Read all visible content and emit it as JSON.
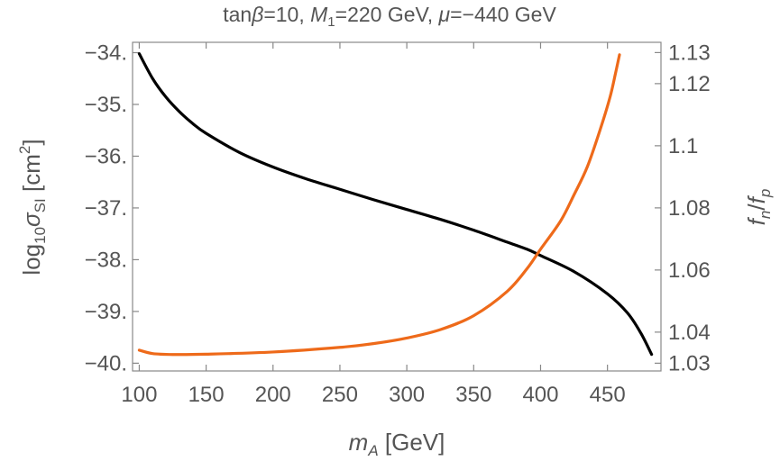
{
  "chart_data": {
    "type": "line",
    "title": "tanβ=10, M₁=220 GeV, μ=−440 GeV",
    "title_parts": {
      "t1": "tan",
      "t2": "β",
      "t3": "=10, ",
      "t4": "M",
      "t5": "1",
      "t6": "=220 GeV, ",
      "t7": "μ",
      "t8": "=−440 GeV"
    },
    "xlabel": "m_A [GeV]",
    "xlabel_parts": {
      "m": "m",
      "sub": "A",
      "rest": " [GeV]"
    },
    "ylabel_left": "log10 σSI [cm2]",
    "ylabel_left_parts": {
      "log": "log",
      "log_sub": "10",
      "sigma": "σ",
      "sigma_sub": "SI",
      "bracket": " [cm",
      "sup": "2",
      "close": "]"
    },
    "ylabel_right": "f_n/f_p",
    "ylabel_right_parts": {
      "f1": "f",
      "s1": "n",
      "slash": "/",
      "f2": "f",
      "s2": "p"
    },
    "xlim": [
      95,
      490
    ],
    "ylim_left": [
      -40.15,
      -33.8
    ],
    "ylim_right": [
      1.0275,
      1.1333
    ],
    "x_ticks": [
      {
        "value": 100,
        "label": "100"
      },
      {
        "value": 150,
        "label": "150"
      },
      {
        "value": 200,
        "label": "200"
      },
      {
        "value": 250,
        "label": "250"
      },
      {
        "value": 300,
        "label": "300"
      },
      {
        "value": 350,
        "label": "350"
      },
      {
        "value": 400,
        "label": "400"
      },
      {
        "value": 450,
        "label": "450"
      }
    ],
    "y_left_ticks": [
      {
        "value": -34,
        "label": "−34."
      },
      {
        "value": -35,
        "label": "−35."
      },
      {
        "value": -36,
        "label": "−36."
      },
      {
        "value": -37,
        "label": "−37."
      },
      {
        "value": -38,
        "label": "−38."
      },
      {
        "value": -39,
        "label": "−39."
      },
      {
        "value": -40,
        "label": "−40."
      }
    ],
    "y_right_ticks": [
      {
        "value": 1.13,
        "label": "1.13"
      },
      {
        "value": 1.12,
        "label": "1.12"
      },
      {
        "value": 1.1,
        "label": "1.1"
      },
      {
        "value": 1.08,
        "label": "1.08"
      },
      {
        "value": 1.06,
        "label": "1.06"
      },
      {
        "value": 1.04,
        "label": "1.04"
      },
      {
        "value": 1.03,
        "label": "1.03"
      }
    ],
    "grid": false,
    "series": [
      {
        "axis": "left",
        "color": "#000000",
        "points": [
          [
            100,
            -34.02
          ],
          [
            110,
            -34.5
          ],
          [
            120,
            -34.86
          ],
          [
            130,
            -35.14
          ],
          [
            140,
            -35.37
          ],
          [
            150,
            -35.56
          ],
          [
            175,
            -35.93
          ],
          [
            200,
            -36.21
          ],
          [
            225,
            -36.44
          ],
          [
            250,
            -36.64
          ],
          [
            275,
            -36.84
          ],
          [
            300,
            -37.03
          ],
          [
            325,
            -37.22
          ],
          [
            350,
            -37.43
          ],
          [
            375,
            -37.66
          ],
          [
            390,
            -37.8
          ],
          [
            400,
            -37.92
          ],
          [
            425,
            -38.23
          ],
          [
            450,
            -38.66
          ],
          [
            465,
            -39.03
          ],
          [
            475,
            -39.42
          ],
          [
            483,
            -39.83
          ]
        ]
      },
      {
        "axis": "right",
        "color": "#ee6a1a",
        "points": [
          [
            100,
            1.0342
          ],
          [
            110,
            1.0331
          ],
          [
            125,
            1.0328
          ],
          [
            150,
            1.0329
          ],
          [
            200,
            1.0336
          ],
          [
            250,
            1.0351
          ],
          [
            275,
            1.0363
          ],
          [
            300,
            1.0381
          ],
          [
            325,
            1.0408
          ],
          [
            350,
            1.0453
          ],
          [
            375,
            1.0531
          ],
          [
            390,
            1.0605
          ],
          [
            400,
            1.0667
          ],
          [
            415,
            1.0758
          ],
          [
            425,
            1.0842
          ],
          [
            435,
            1.0933
          ],
          [
            445,
            1.1058
          ],
          [
            452,
            1.1158
          ],
          [
            456,
            1.1233
          ],
          [
            459,
            1.1293
          ]
        ]
      }
    ]
  }
}
